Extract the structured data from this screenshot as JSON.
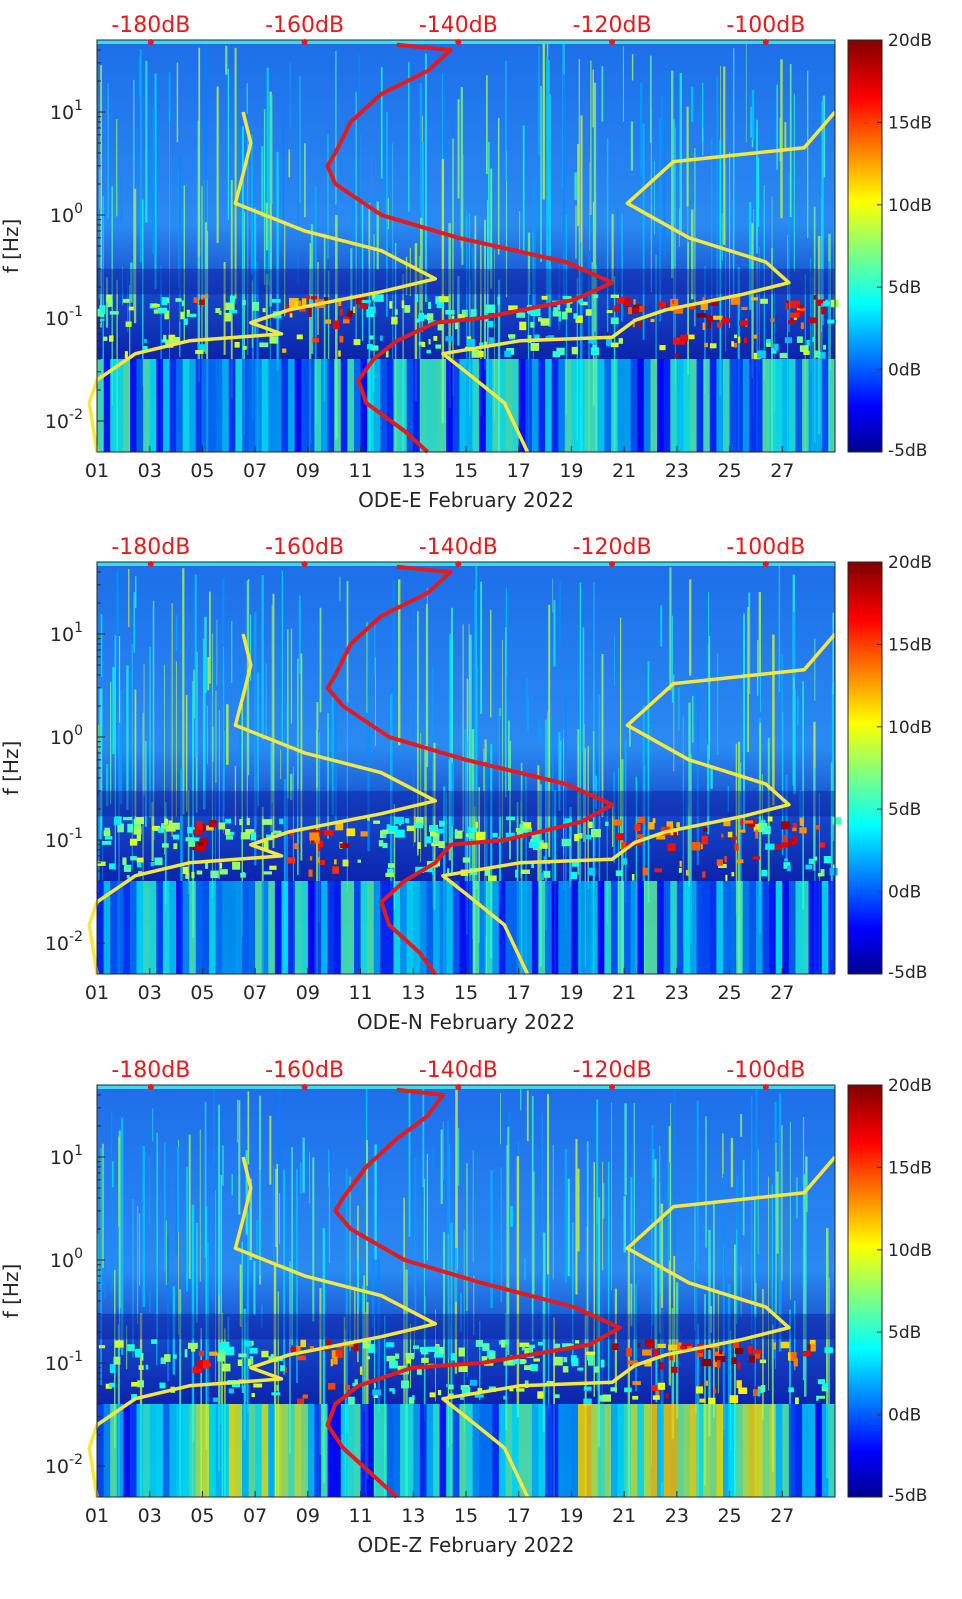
{
  "chart_data": [
    {
      "type": "heatmap",
      "title": "ODE-E February 2022",
      "xlabel": "ODE-E February 2022",
      "ylabel": "f [Hz]",
      "x_ticks": [
        "01",
        "03",
        "05",
        "07",
        "09",
        "11",
        "13",
        "15",
        "17",
        "19",
        "21",
        "23",
        "25",
        "27"
      ],
      "x_range_days": [
        1,
        29
      ],
      "y_scale": "log",
      "y_range_hz": [
        0.005,
        50
      ],
      "y_ticks": [
        "10^-2",
        "10^-1",
        "10^0",
        "10^1"
      ],
      "top_axis_labels": [
        "-180dB",
        "-160dB",
        "-140dB",
        "-120dB",
        "-100dB"
      ],
      "top_axis_range_db": [
        -187,
        -91
      ],
      "colorbar": {
        "range_db": [
          -5,
          20
        ],
        "ticks": [
          "20dB",
          "15dB",
          "10dB",
          "5dB",
          "0dB",
          "-5dB"
        ],
        "colormap": "jet"
      },
      "series": [
        {
          "name": "median PSD",
          "color": "#e41a1c",
          "x_db": "top axis",
          "points": [
            [
              -148,
              45
            ],
            [
              -141,
              40
            ],
            [
              -144,
              25
            ],
            [
              -150,
              15
            ],
            [
              -154,
              8
            ],
            [
              -156,
              4
            ],
            [
              -157,
              3
            ],
            [
              -156,
              2
            ],
            [
              -150,
              1
            ],
            [
              -140,
              0.6
            ],
            [
              -126,
              0.35
            ],
            [
              -120,
              0.22
            ],
            [
              -125,
              0.15
            ],
            [
              -137,
              0.1
            ],
            [
              -143,
              0.09
            ],
            [
              -148,
              0.06
            ],
            [
              -151,
              0.04
            ],
            [
              -153,
              0.025
            ],
            [
              -152,
              0.015
            ],
            [
              -147,
              0.008
            ],
            [
              -144,
              0.005
            ]
          ]
        },
        {
          "name": "low noise model",
          "color": "#f5e641",
          "x_db": "top axis",
          "points": [
            [
              -168,
              10
            ],
            [
              -167,
              5
            ],
            [
              -168,
              2.5
            ],
            [
              -169,
              1.3
            ],
            [
              -160,
              0.7
            ],
            [
              -150,
              0.45
            ],
            [
              -143,
              0.24
            ],
            [
              -150,
              0.18
            ],
            [
              -162,
              0.12
            ],
            [
              -167,
              0.09
            ],
            [
              -163,
              0.07
            ],
            [
              -175,
              0.06
            ],
            [
              -182,
              0.045
            ],
            [
              -187,
              0.025
            ],
            [
              -188,
              0.015
            ],
            [
              -187,
              0.005
            ]
          ]
        },
        {
          "name": "high noise model",
          "color": "#f5e641",
          "x_db": "top axis",
          "points": [
            [
              -91,
              10
            ],
            [
              -95,
              4.5
            ],
            [
              -112,
              3.3
            ],
            [
              -118,
              1.3
            ],
            [
              -110,
              0.6
            ],
            [
              -100,
              0.35
            ],
            [
              -97,
              0.22
            ],
            [
              -103,
              0.17
            ],
            [
              -113,
              0.12
            ],
            [
              -117,
              0.095
            ],
            [
              -120,
              0.065
            ],
            [
              -132,
              0.06
            ],
            [
              -142,
              0.045
            ],
            [
              -139,
              0.03
            ],
            [
              -134,
              0.015
            ],
            [
              -131,
              0.005
            ]
          ]
        }
      ]
    },
    {
      "type": "heatmap",
      "title": "ODE-N February 2022",
      "xlabel": "ODE-N February 2022",
      "ylabel": "f [Hz]",
      "x_ticks": [
        "01",
        "03",
        "05",
        "07",
        "09",
        "11",
        "13",
        "15",
        "17",
        "19",
        "21",
        "23",
        "25",
        "27"
      ],
      "x_range_days": [
        1,
        29
      ],
      "y_scale": "log",
      "y_range_hz": [
        0.005,
        50
      ],
      "y_ticks": [
        "10^-2",
        "10^-1",
        "10^0",
        "10^1"
      ],
      "top_axis_labels": [
        "-180dB",
        "-160dB",
        "-140dB",
        "-120dB",
        "-100dB"
      ],
      "top_axis_range_db": [
        -187,
        -91
      ],
      "colorbar": {
        "range_db": [
          -5,
          20
        ],
        "ticks": [
          "20dB",
          "15dB",
          "10dB",
          "5dB",
          "0dB",
          "-5dB"
        ],
        "colormap": "jet"
      },
      "series": [
        {
          "name": "median PSD",
          "color": "#e41a1c",
          "x_db": "top axis",
          "points": [
            [
              -148,
              45
            ],
            [
              -141,
              40
            ],
            [
              -144,
              25
            ],
            [
              -150,
              15
            ],
            [
              -154,
              8
            ],
            [
              -156,
              4
            ],
            [
              -157,
              3
            ],
            [
              -155,
              2
            ],
            [
              -149,
              1
            ],
            [
              -139,
              0.6
            ],
            [
              -126,
              0.35
            ],
            [
              -120,
              0.22
            ],
            [
              -124,
              0.15
            ],
            [
              -134,
              0.1
            ],
            [
              -141,
              0.09
            ],
            [
              -143,
              0.06
            ],
            [
              -147,
              0.04
            ],
            [
              -150,
              0.025
            ],
            [
              -149,
              0.015
            ],
            [
              -145,
              0.008
            ],
            [
              -143,
              0.005
            ]
          ]
        },
        {
          "name": "low noise model",
          "color": "#f5e641",
          "x_db": "top axis",
          "points": [
            [
              -168,
              10
            ],
            [
              -167,
              5
            ],
            [
              -168,
              2.5
            ],
            [
              -169,
              1.3
            ],
            [
              -160,
              0.7
            ],
            [
              -150,
              0.45
            ],
            [
              -143,
              0.24
            ],
            [
              -150,
              0.18
            ],
            [
              -162,
              0.12
            ],
            [
              -167,
              0.09
            ],
            [
              -163,
              0.07
            ],
            [
              -175,
              0.06
            ],
            [
              -182,
              0.045
            ],
            [
              -187,
              0.025
            ],
            [
              -188,
              0.015
            ],
            [
              -187,
              0.005
            ]
          ]
        },
        {
          "name": "high noise model",
          "color": "#f5e641",
          "x_db": "top axis",
          "points": [
            [
              -91,
              10
            ],
            [
              -95,
              4.5
            ],
            [
              -112,
              3.3
            ],
            [
              -118,
              1.3
            ],
            [
              -110,
              0.6
            ],
            [
              -100,
              0.35
            ],
            [
              -97,
              0.22
            ],
            [
              -103,
              0.17
            ],
            [
              -113,
              0.12
            ],
            [
              -117,
              0.095
            ],
            [
              -120,
              0.065
            ],
            [
              -132,
              0.06
            ],
            [
              -142,
              0.045
            ],
            [
              -139,
              0.03
            ],
            [
              -134,
              0.015
            ],
            [
              -131,
              0.005
            ]
          ]
        }
      ]
    },
    {
      "type": "heatmap",
      "title": "ODE-Z February 2022",
      "xlabel": "ODE-Z February 2022",
      "ylabel": "f [Hz]",
      "x_ticks": [
        "01",
        "03",
        "05",
        "07",
        "09",
        "11",
        "13",
        "15",
        "17",
        "19",
        "21",
        "23",
        "25",
        "27"
      ],
      "x_range_days": [
        1,
        29
      ],
      "y_scale": "log",
      "y_range_hz": [
        0.005,
        50
      ],
      "y_ticks": [
        "10^-2",
        "10^-1",
        "10^0",
        "10^1"
      ],
      "top_axis_labels": [
        "-180dB",
        "-160dB",
        "-140dB",
        "-120dB",
        "-100dB"
      ],
      "top_axis_range_db": [
        -187,
        -91
      ],
      "colorbar": {
        "range_db": [
          -5,
          20
        ],
        "ticks": [
          "20dB",
          "15dB",
          "10dB",
          "5dB",
          "0dB",
          "-5dB"
        ],
        "colormap": "jet"
      },
      "series": [
        {
          "name": "median PSD",
          "color": "#e41a1c",
          "x_db": "top axis",
          "points": [
            [
              -148,
              45
            ],
            [
              -142,
              40
            ],
            [
              -144,
              25
            ],
            [
              -148,
              15
            ],
            [
              -152,
              8
            ],
            [
              -155,
              4
            ],
            [
              -156,
              3
            ],
            [
              -154,
              2
            ],
            [
              -147,
              1
            ],
            [
              -137,
              0.6
            ],
            [
              -125,
              0.35
            ],
            [
              -119,
              0.22
            ],
            [
              -123,
              0.15
            ],
            [
              -137,
              0.1
            ],
            [
              -146,
              0.09
            ],
            [
              -153,
              0.06
            ],
            [
              -156,
              0.04
            ],
            [
              -157,
              0.025
            ],
            [
              -155,
              0.015
            ],
            [
              -151,
              0.008
            ],
            [
              -148,
              0.005
            ]
          ]
        },
        {
          "name": "low noise model",
          "color": "#f5e641",
          "x_db": "top axis",
          "points": [
            [
              -168,
              10
            ],
            [
              -167,
              5
            ],
            [
              -168,
              2.5
            ],
            [
              -169,
              1.3
            ],
            [
              -160,
              0.7
            ],
            [
              -150,
              0.45
            ],
            [
              -143,
              0.24
            ],
            [
              -150,
              0.18
            ],
            [
              -162,
              0.12
            ],
            [
              -167,
              0.09
            ],
            [
              -163,
              0.07
            ],
            [
              -175,
              0.06
            ],
            [
              -182,
              0.045
            ],
            [
              -187,
              0.025
            ],
            [
              -188,
              0.015
            ],
            [
              -187,
              0.005
            ]
          ]
        },
        {
          "name": "high noise model",
          "color": "#f5e641",
          "x_db": "top axis",
          "points": [
            [
              -91,
              10
            ],
            [
              -95,
              4.5
            ],
            [
              -112,
              3.3
            ],
            [
              -118,
              1.3
            ],
            [
              -110,
              0.6
            ],
            [
              -100,
              0.35
            ],
            [
              -97,
              0.22
            ],
            [
              -103,
              0.17
            ],
            [
              -113,
              0.12
            ],
            [
              -117,
              0.095
            ],
            [
              -120,
              0.065
            ],
            [
              -132,
              0.06
            ],
            [
              -142,
              0.045
            ],
            [
              -139,
              0.03
            ],
            [
              -134,
              0.015
            ],
            [
              -131,
              0.005
            ]
          ]
        }
      ]
    }
  ]
}
